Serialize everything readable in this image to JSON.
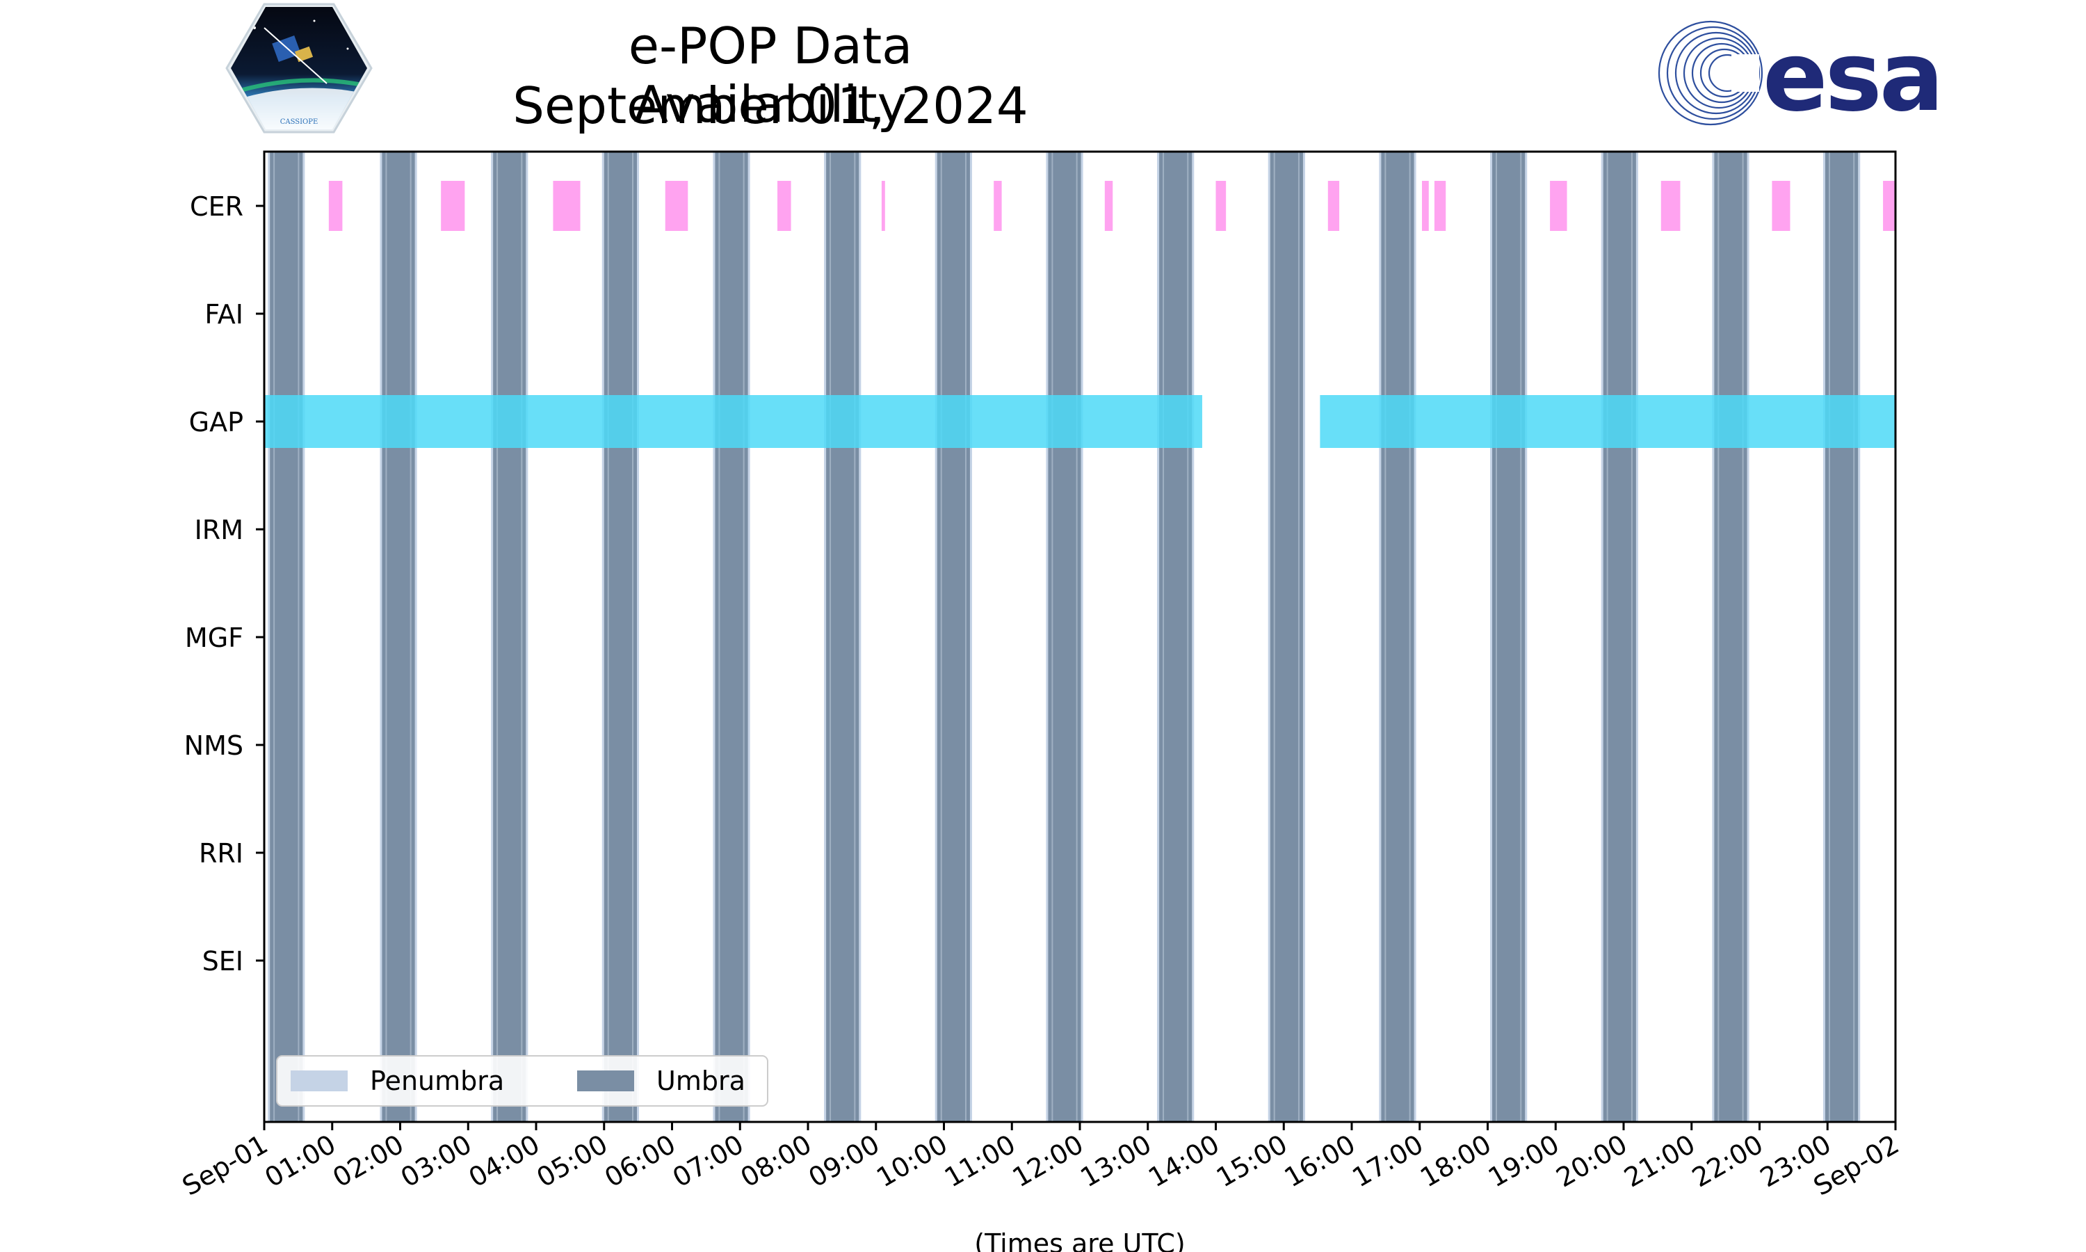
{
  "chart_data": {
    "type": "timeline",
    "title": [
      "e-POP Data Availability",
      "September 01, 2024"
    ],
    "xlabel": "(Times are UTC)",
    "x_range": [
      "2024-09-01 00:00",
      "2024-09-02 00:00"
    ],
    "x_tick_labels": [
      "Sep-01",
      "01:00",
      "02:00",
      "03:00",
      "04:00",
      "05:00",
      "06:00",
      "07:00",
      "08:00",
      "09:00",
      "10:00",
      "11:00",
      "12:00",
      "13:00",
      "14:00",
      "15:00",
      "16:00",
      "17:00",
      "18:00",
      "19:00",
      "20:00",
      "21:00",
      "22:00",
      "23:00",
      "Sep-02"
    ],
    "instruments": [
      "CER",
      "FAI",
      "GAP",
      "IRM",
      "MGF",
      "NMS",
      "RRI",
      "SEI"
    ],
    "legend": {
      "placement": "lower-left",
      "entries": [
        {
          "label": "Penumbra",
          "color": "#c5d3e6"
        },
        {
          "label": "Umbra",
          "color": "#7a8ea4"
        }
      ]
    },
    "umbra": [
      {
        "start": "00:05",
        "end": "00:34"
      },
      {
        "start": "01:44",
        "end": "02:13"
      },
      {
        "start": "03:22",
        "end": "03:51"
      },
      {
        "start": "05:00",
        "end": "05:29"
      },
      {
        "start": "06:38",
        "end": "07:07"
      },
      {
        "start": "08:16",
        "end": "08:45"
      },
      {
        "start": "09:54",
        "end": "10:23"
      },
      {
        "start": "11:32",
        "end": "12:01"
      },
      {
        "start": "13:10",
        "end": "13:39"
      },
      {
        "start": "14:48",
        "end": "15:17"
      },
      {
        "start": "16:26",
        "end": "16:55"
      },
      {
        "start": "18:04",
        "end": "18:33"
      },
      {
        "start": "19:42",
        "end": "20:11"
      },
      {
        "start": "21:20",
        "end": "21:49"
      },
      {
        "start": "22:58",
        "end": "23:27"
      }
    ],
    "availability": [
      {
        "instrument": "CER",
        "color": "#ff99ee",
        "intervals": [
          {
            "start": "00:57",
            "end": "01:09"
          },
          {
            "start": "02:36",
            "end": "02:57"
          },
          {
            "start": "04:15",
            "end": "04:39"
          },
          {
            "start": "05:54",
            "end": "06:14"
          },
          {
            "start": "07:33",
            "end": "07:45"
          },
          {
            "start": "09:05",
            "end": "09:08"
          },
          {
            "start": "10:44",
            "end": "10:51"
          },
          {
            "start": "12:22",
            "end": "12:29"
          },
          {
            "start": "14:00",
            "end": "14:09"
          },
          {
            "start": "15:39",
            "end": "15:49"
          },
          {
            "start": "17:02",
            "end": "17:08"
          },
          {
            "start": "17:13",
            "end": "17:23"
          },
          {
            "start": "18:55",
            "end": "19:10"
          },
          {
            "start": "20:33",
            "end": "20:50"
          },
          {
            "start": "22:11",
            "end": "22:27"
          },
          {
            "start": "23:49",
            "end": "24:00"
          }
        ]
      },
      {
        "instrument": "FAI",
        "color": "",
        "intervals": []
      },
      {
        "instrument": "GAP",
        "color": "#4dd9f7",
        "intervals": [
          {
            "start": "00:00",
            "end": "13:48"
          },
          {
            "start": "15:32",
            "end": "24:00"
          }
        ]
      },
      {
        "instrument": "IRM",
        "color": "",
        "intervals": []
      },
      {
        "instrument": "MGF",
        "color": "",
        "intervals": []
      },
      {
        "instrument": "NMS",
        "color": "",
        "intervals": []
      },
      {
        "instrument": "RRI",
        "color": "",
        "intervals": []
      },
      {
        "instrument": "SEI",
        "color": "",
        "intervals": []
      }
    ]
  },
  "logos": {
    "cassiope": {
      "text": "CASSIOPE",
      "icon": "cassiope-mission-badge"
    },
    "esa": {
      "text": "esa",
      "icon": "esa-logo",
      "color": "#1f2a78"
    }
  }
}
